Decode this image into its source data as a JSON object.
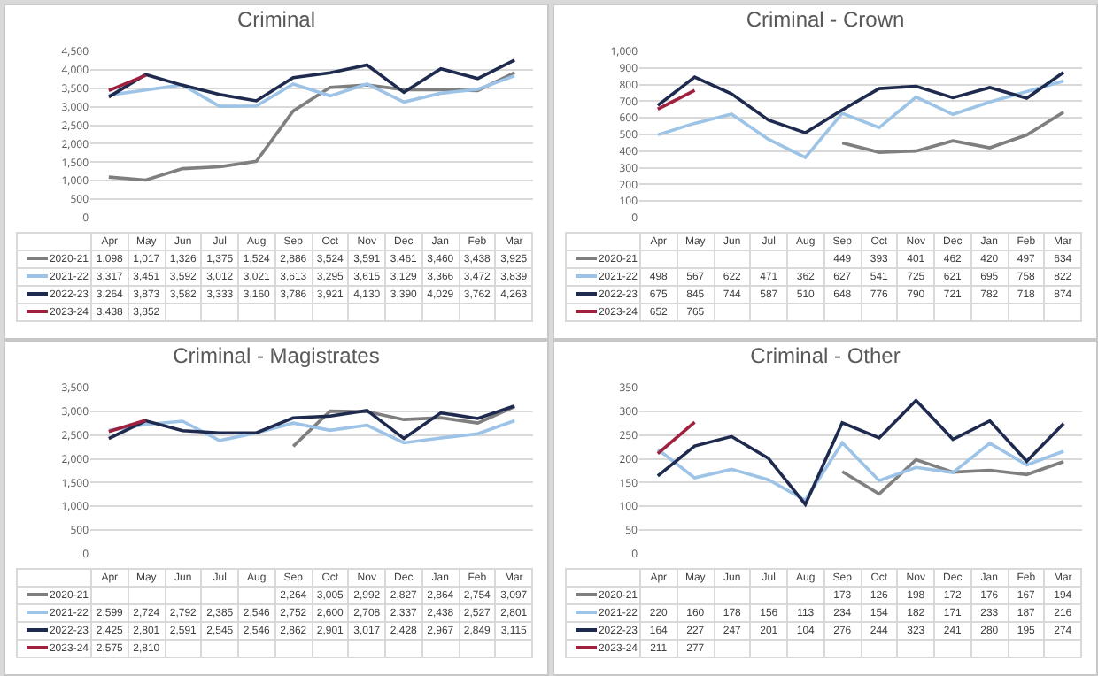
{
  "chart_data": [
    {
      "type": "line",
      "title": "Criminal",
      "categories": [
        "Apr",
        "May",
        "Jun",
        "Jul",
        "Aug",
        "Sep",
        "Oct",
        "Nov",
        "Dec",
        "Jan",
        "Feb",
        "Mar"
      ],
      "ylim": [
        0,
        4500
      ],
      "yticks": [
        0,
        500,
        {
          "value": 1000,
          "label": "1,000"
        },
        {
          "value": 1500,
          "label": "1,500"
        },
        {
          "value": 2000,
          "label": "2,000"
        },
        {
          "value": 2500,
          "label": "2,500"
        },
        {
          "value": 3000,
          "label": "3,000"
        },
        {
          "value": 3500,
          "label": "3,500"
        },
        {
          "value": 4000,
          "label": "4,000"
        },
        {
          "value": 4500,
          "label": "4,500"
        }
      ],
      "grid": "y",
      "legend": "bottom",
      "tick_labels": "y",
      "series": [
        {
          "name": "2020-21",
          "color": "#7f7f7f",
          "values": [
            1098,
            1017,
            1326,
            1375,
            1524,
            2886,
            3524,
            3591,
            3461,
            3460,
            3438,
            3925
          ],
          "value_labels": [
            "1,098",
            "1,017",
            "1,326",
            "1,375",
            "1,524",
            "2,886",
            "3,524",
            "3,591",
            "3,461",
            "3,460",
            "3,438",
            "3,925"
          ]
        },
        {
          "name": "2021-22",
          "color": "#9dc3e6",
          "values": [
            3317,
            3451,
            3592,
            3012,
            3021,
            3613,
            3295,
            3615,
            3129,
            3366,
            3472,
            3839
          ],
          "value_labels": [
            "3,317",
            "3,451",
            "3,592",
            "3,012",
            "3,021",
            "3,613",
            "3,295",
            "3,615",
            "3,129",
            "3,366",
            "3,472",
            "3,839"
          ]
        },
        {
          "name": "2022-23",
          "color": "#1f2a4f",
          "values": [
            3264,
            3873,
            3582,
            3333,
            3160,
            3786,
            3921,
            4130,
            3390,
            4029,
            3762,
            4263
          ],
          "value_labels": [
            "3,264",
            "3,873",
            "3,582",
            "3,333",
            "3,160",
            "3,786",
            "3,921",
            "4,130",
            "3,390",
            "4,029",
            "3,762",
            "4,263"
          ]
        },
        {
          "name": "2023-24",
          "color": "#a0213f",
          "values": [
            3438,
            3852,
            null,
            null,
            null,
            null,
            null,
            null,
            null,
            null,
            null,
            null
          ],
          "value_labels": [
            "3,438",
            "3,852",
            null,
            null,
            null,
            null,
            null,
            null,
            null,
            null,
            null,
            null
          ]
        }
      ]
    },
    {
      "type": "line",
      "title": "Criminal - Crown",
      "categories": [
        "Apr",
        "May",
        "Jun",
        "Jul",
        "Aug",
        "Sep",
        "Oct",
        "Nov",
        "Dec",
        "Jan",
        "Feb",
        "Mar"
      ],
      "ylim": [
        0,
        1000
      ],
      "yticks": [
        0,
        100,
        200,
        300,
        400,
        500,
        600,
        700,
        800,
        900,
        {
          "value": 1000,
          "label": "1,000"
        }
      ],
      "grid": "y",
      "legend": "bottom",
      "tick_labels": "y",
      "data_labels": true,
      "series": [
        {
          "name": "2020-21",
          "color": "#7f7f7f",
          "values": [
            null,
            null,
            null,
            null,
            null,
            449,
            393,
            401,
            462,
            420,
            497,
            634
          ]
        },
        {
          "name": "2021-22",
          "color": "#9dc3e6",
          "values": [
            498,
            567,
            622,
            471,
            362,
            627,
            541,
            725,
            621,
            695,
            758,
            822
          ]
        },
        {
          "name": "2022-23",
          "color": "#1f2a4f",
          "values": [
            675,
            845,
            744,
            587,
            510,
            648,
            776,
            790,
            721,
            782,
            718,
            874
          ]
        },
        {
          "name": "2023-24",
          "color": "#a0213f",
          "values": [
            652,
            765,
            null,
            null,
            null,
            null,
            null,
            null,
            null,
            null,
            null,
            null
          ]
        }
      ]
    },
    {
      "type": "line",
      "title": "Criminal - Magistrates",
      "categories": [
        "Apr",
        "May",
        "Jun",
        "Jul",
        "Aug",
        "Sep",
        "Oct",
        "Nov",
        "Dec",
        "Jan",
        "Feb",
        "Mar"
      ],
      "ylim": [
        0,
        3500
      ],
      "yticks": [
        0,
        500,
        {
          "value": 1000,
          "label": "1,000"
        },
        {
          "value": 1500,
          "label": "1,500"
        },
        {
          "value": 2000,
          "label": "2,000"
        },
        {
          "value": 2500,
          "label": "2,500"
        },
        {
          "value": 3000,
          "label": "3,000"
        },
        {
          "value": 3500,
          "label": "3,500"
        }
      ],
      "grid": "y",
      "legend": "bottom",
      "tick_labels": "y",
      "series": [
        {
          "name": "2020-21",
          "color": "#7f7f7f",
          "values": [
            null,
            null,
            null,
            null,
            null,
            2264,
            3005,
            2992,
            2827,
            2864,
            2754,
            3097
          ],
          "value_labels": [
            null,
            null,
            null,
            null,
            null,
            "2,264",
            "3,005",
            "2,992",
            "2,827",
            "2,864",
            "2,754",
            "3,097"
          ]
        },
        {
          "name": "2021-22",
          "color": "#9dc3e6",
          "values": [
            2599,
            2724,
            2792,
            2385,
            2546,
            2752,
            2600,
            2708,
            2337,
            2438,
            2527,
            2801
          ],
          "value_labels": [
            "2,599",
            "2,724",
            "2,792",
            "2,385",
            "2,546",
            "2,752",
            "2,600",
            "2,708",
            "2,337",
            "2,438",
            "2,527",
            "2,801"
          ]
        },
        {
          "name": "2022-23",
          "color": "#1f2a4f",
          "values": [
            2425,
            2801,
            2591,
            2545,
            2546,
            2862,
            2901,
            3017,
            2428,
            2967,
            2849,
            3115
          ],
          "value_labels": [
            "2,425",
            "2,801",
            "2,591",
            "2,545",
            "2,546",
            "2,862",
            "2,901",
            "3,017",
            "2,428",
            "2,967",
            "2,849",
            "3,115"
          ]
        },
        {
          "name": "2023-24",
          "color": "#a0213f",
          "values": [
            2575,
            2810,
            null,
            null,
            null,
            null,
            null,
            null,
            null,
            null,
            null,
            null
          ],
          "value_labels": [
            "2,575",
            "2,810",
            null,
            null,
            null,
            null,
            null,
            null,
            null,
            null,
            null,
            null
          ]
        }
      ]
    },
    {
      "type": "line",
      "title": "Criminal - Other",
      "categories": [
        "Apr",
        "May",
        "Jun",
        "Jul",
        "Aug",
        "Sep",
        "Oct",
        "Nov",
        "Dec",
        "Jan",
        "Feb",
        "Mar"
      ],
      "ylim": [
        0,
        350
      ],
      "yticks": [
        0,
        50,
        100,
        150,
        200,
        250,
        300,
        350
      ],
      "grid": "y",
      "legend": "bottom",
      "tick_labels": "y",
      "data_labels": true,
      "series": [
        {
          "name": "2020-21",
          "color": "#7f7f7f",
          "values": [
            null,
            null,
            null,
            null,
            null,
            173,
            126,
            198,
            172,
            176,
            167,
            194
          ]
        },
        {
          "name": "2021-22",
          "color": "#9dc3e6",
          "values": [
            220,
            160,
            178,
            156,
            113,
            234,
            154,
            182,
            171,
            233,
            187,
            216
          ]
        },
        {
          "name": "2022-23",
          "color": "#1f2a4f",
          "values": [
            164,
            227,
            247,
            201,
            104,
            276,
            244,
            323,
            241,
            280,
            195,
            274
          ]
        },
        {
          "name": "2023-24",
          "color": "#a0213f",
          "values": [
            211,
            277,
            null,
            null,
            null,
            null,
            null,
            null,
            null,
            null,
            null,
            null
          ]
        }
      ]
    }
  ]
}
